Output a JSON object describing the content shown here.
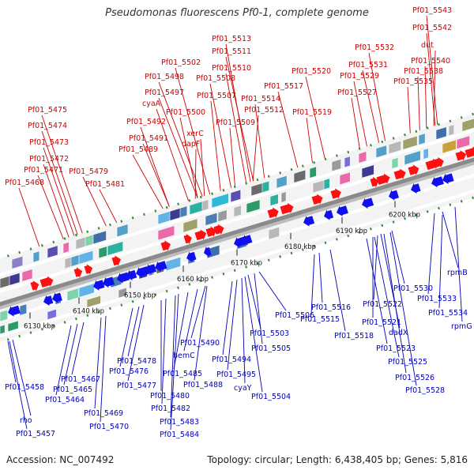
{
  "title": "Pseudomonas fluorescens Pf0-1, complete genome",
  "footer": {
    "accession": "Accession: NC_007492",
    "summary": "Topology: circular; Length: 6,438,405 bp; Genes: 5,816"
  },
  "colors": {
    "top_labels": "#cc0000",
    "bottom_labels": "#0000bb",
    "backbone": "#8a8a8a"
  },
  "ticks": [
    "6130 kbp",
    "6140 kbp",
    "6150 kbp",
    "6160 kbp",
    "6170 kbp",
    "6180 kbp",
    "6190 kbp",
    "6200 kbp"
  ],
  "top_labels": [
    "Pf01_5543",
    "Pf01_5542",
    "dut",
    "Pf01_5540",
    "Pf01_5538",
    "Pf01_5535",
    "Pf01_5532",
    "Pf01_5531",
    "Pf01_5529",
    "Pf01_5527",
    "Pf01_5520",
    "Pf01_5519",
    "Pf01_5517",
    "Pf01_5514",
    "Pf01_5512",
    "Pf01_5513",
    "Pf01_5511",
    "Pf01_5510",
    "Pf01_5508",
    "Pf01_5509",
    "Pf01_5502",
    "Pf01_5498",
    "Pf01_5497",
    "Pf01_5507",
    "cyaA",
    "Pf01_5500",
    "xerC",
    "Pf01_5492",
    "dapF",
    "Pf01_5491",
    "Pf01_5489",
    "Pf01_5479",
    "Pf01_5481",
    "Pf01_5475",
    "Pf01_5474",
    "Pf01_5473",
    "Pf01_5472",
    "Pf01_5471",
    "Pf01_5468"
  ],
  "bottom_labels": [
    "rpmB",
    "Pf01_5533",
    "Pf01_5534",
    "rpmG",
    "Pf01_5530",
    "Pf01_5522",
    "Pf01_5521",
    "dadX",
    "Pf01_5523",
    "Pf01_5525",
    "Pf01_5526",
    "Pf01_5528",
    "Pf01_5516",
    "Pf01_5515",
    "Pf01_5518",
    "Pf01_5506",
    "Pf01_5503",
    "Pf01_5505",
    "Pf01_5504",
    "Pf01_5494",
    "Pf01_5495",
    "cyaY",
    "Pf01_5490",
    "hemC",
    "Pf01_5485",
    "Pf01_5488",
    "Pf01_5478",
    "Pf01_5476",
    "Pf01_5477",
    "Pf01_5480",
    "Pf01_5482",
    "Pf01_5483",
    "Pf01_5484",
    "Pf01_5467",
    "Pf01_5465",
    "Pf01_5464",
    "Pf01_5469",
    "Pf01_5470",
    "Pf01_5458",
    "rho",
    "Pf01_5457"
  ]
}
